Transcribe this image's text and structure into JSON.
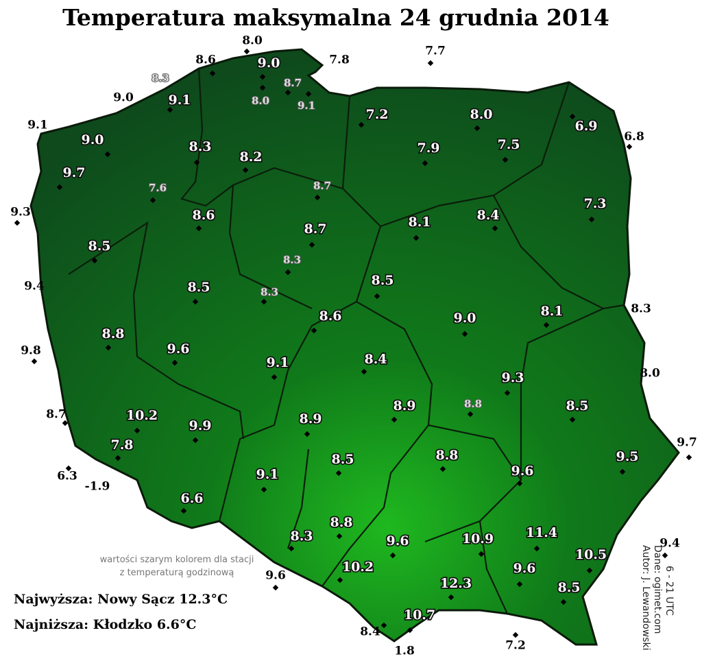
{
  "title": "Temperatura maksymalna 24 grudnia 2014",
  "stations": [
    "8.0",
    "7.8",
    "7.7",
    "9.1",
    "9.3",
    "9.4",
    "9.8",
    "8.7",
    "6.3",
    "-1.9",
    "9.6",
    "8.4",
    "1.8",
    "7.2",
    "9.4",
    "9.7",
    "8.3",
    "8.0",
    "6.8",
    "9.0",
    "8.6",
    "9.0",
    "9.1",
    "9.0",
    "9.7",
    "8.3",
    "8.2",
    "8.7",
    "7.6",
    "8.6",
    "8.7",
    "8.3",
    "8.5",
    "8.5",
    "8.3",
    "8.6",
    "8.5",
    "8.1",
    "8.4",
    "7.3",
    "6.9",
    "8.0",
    "7.5",
    "7.9",
    "7.2",
    "9.1",
    "8.7",
    "8.0",
    "8.3",
    "9.0",
    "8.1",
    "8.4",
    "9.3",
    "8.8",
    "8.9",
    "8.5",
    "9.5",
    "8.8",
    "9.6",
    "9.1",
    "10.2",
    "9.9",
    "7.8",
    "8.9",
    "8.5",
    "8.8",
    "9.6",
    "9.1",
    "6.6",
    "8.3",
    "8.8",
    "9.6",
    "10.9",
    "11.4",
    "10.5",
    "10.2",
    "9.6",
    "12.3",
    "8.5",
    "10.7"
  ],
  "note": [
    "wartości szarym kolorem dla stacji",
    "z temperaturą godzinową"
  ],
  "extremes": [
    "Najwyższa: Nowy Sącz 12.3°C",
    "Najniższa: Kłodzko 6.6°C"
  ],
  "credits": [
    "Autor: J. Lewandowski",
    "Dane: ogimet.com",
    "6 - 21 UTC"
  ]
}
